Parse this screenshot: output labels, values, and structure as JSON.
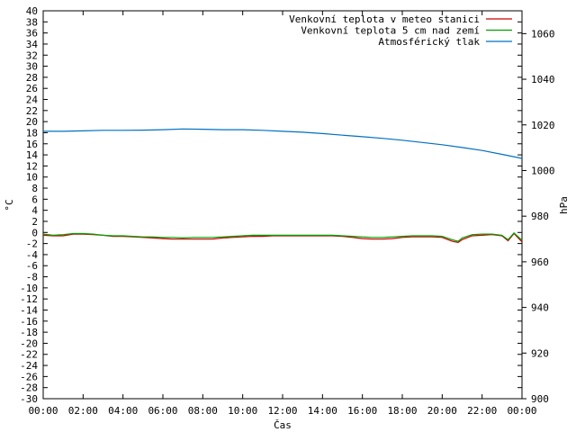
{
  "chart_data": {
    "type": "line",
    "xlabel": "Čas",
    "ylabel_left": "°C",
    "ylabel_right": "hPa",
    "xlim": [
      0,
      24
    ],
    "ylim_left": [
      -30,
      40
    ],
    "ylim_right": [
      900,
      1070
    ],
    "x_ticks": [
      "00:00",
      "02:00",
      "04:00",
      "06:00",
      "08:00",
      "10:00",
      "12:00",
      "14:00",
      "16:00",
      "18:00",
      "20:00",
      "22:00",
      "00:00"
    ],
    "y_ticks_left": [
      40,
      38,
      36,
      34,
      32,
      30,
      28,
      26,
      24,
      22,
      20,
      18,
      16,
      14,
      12,
      10,
      8,
      6,
      4,
      2,
      0,
      -2,
      -4,
      -6,
      -8,
      -10,
      -12,
      -14,
      -16,
      -18,
      -20,
      -22,
      -24,
      -26,
      -28,
      -30
    ],
    "y_ticks_right": [
      1060,
      1040,
      1020,
      1000,
      980,
      960,
      940,
      920,
      900
    ],
    "grid": false,
    "legend_position": "top-right",
    "series": [
      {
        "name": "Venkovní teplota v meteo stanici",
        "axis": "left",
        "color": "#cc0000",
        "x": [
          0,
          0.5,
          1,
          1.5,
          2,
          2.5,
          3,
          3.5,
          4,
          4.5,
          5,
          5.5,
          6,
          6.5,
          7,
          7.5,
          8,
          8.5,
          9,
          9.5,
          10,
          10.5,
          11,
          11.5,
          12,
          12.5,
          13,
          13.5,
          14,
          14.5,
          15,
          15.5,
          16,
          16.5,
          17,
          17.5,
          18,
          18.5,
          19,
          19.5,
          20,
          20.5,
          20.8,
          21,
          21.5,
          22,
          22.5,
          23,
          23.3,
          23.6,
          24
        ],
        "y": [
          -0.5,
          -0.6,
          -0.6,
          -0.3,
          -0.3,
          -0.4,
          -0.5,
          -0.7,
          -0.7,
          -0.8,
          -0.9,
          -1.0,
          -1.1,
          -1.2,
          -1.2,
          -1.2,
          -1.2,
          -1.2,
          -1.0,
          -0.9,
          -0.8,
          -0.7,
          -0.7,
          -0.6,
          -0.6,
          -0.6,
          -0.6,
          -0.6,
          -0.6,
          -0.6,
          -0.7,
          -0.9,
          -1.1,
          -1.2,
          -1.2,
          -1.1,
          -0.9,
          -0.8,
          -0.8,
          -0.8,
          -0.9,
          -1.6,
          -1.8,
          -1.3,
          -0.6,
          -0.5,
          -0.4,
          -0.6,
          -1.5,
          -0.2,
          -1.7
        ]
      },
      {
        "name": "Venkovní teplota 5 cm nad zemí",
        "axis": "left",
        "color": "#00a000",
        "x": [
          0,
          0.5,
          1,
          1.5,
          2,
          2.5,
          3,
          3.5,
          4,
          4.5,
          5,
          5.5,
          6,
          6.5,
          7,
          7.5,
          8,
          8.5,
          9,
          9.5,
          10,
          10.5,
          11,
          11.5,
          12,
          12.5,
          13,
          13.5,
          14,
          14.5,
          15,
          15.5,
          16,
          16.5,
          17,
          17.5,
          18,
          18.5,
          19,
          19.5,
          20,
          20.5,
          20.8,
          21,
          21.5,
          22,
          22.5,
          23,
          23.3,
          23.6,
          24
        ],
        "y": [
          -0.3,
          -0.5,
          -0.4,
          -0.2,
          -0.2,
          -0.3,
          -0.5,
          -0.6,
          -0.6,
          -0.7,
          -0.8,
          -0.8,
          -0.9,
          -0.9,
          -1.0,
          -0.9,
          -0.9,
          -0.9,
          -0.8,
          -0.7,
          -0.6,
          -0.5,
          -0.5,
          -0.5,
          -0.5,
          -0.5,
          -0.5,
          -0.5,
          -0.5,
          -0.5,
          -0.6,
          -0.7,
          -0.8,
          -0.9,
          -0.9,
          -0.8,
          -0.7,
          -0.6,
          -0.6,
          -0.6,
          -0.7,
          -1.3,
          -1.6,
          -1.0,
          -0.4,
          -0.3,
          -0.3,
          -0.5,
          -1.3,
          -0.1,
          -1.4
        ]
      },
      {
        "name": "Atmosférický tlak",
        "axis": "right",
        "color": "#0070c0",
        "x": [
          0,
          1,
          2,
          3,
          4,
          5,
          6,
          7,
          8,
          9,
          10,
          11,
          12,
          13,
          14,
          15,
          16,
          17,
          18,
          19,
          20,
          21,
          22,
          23,
          24
        ],
        "y": [
          1017.2,
          1017.2,
          1017.4,
          1017.6,
          1017.6,
          1017.7,
          1017.9,
          1018.2,
          1018.1,
          1017.9,
          1017.9,
          1017.6,
          1017.2,
          1016.8,
          1016.2,
          1015.5,
          1014.8,
          1014.1,
          1013.3,
          1012.3,
          1011.3,
          1010.1,
          1008.8,
          1007.1,
          1005.3
        ]
      }
    ]
  }
}
